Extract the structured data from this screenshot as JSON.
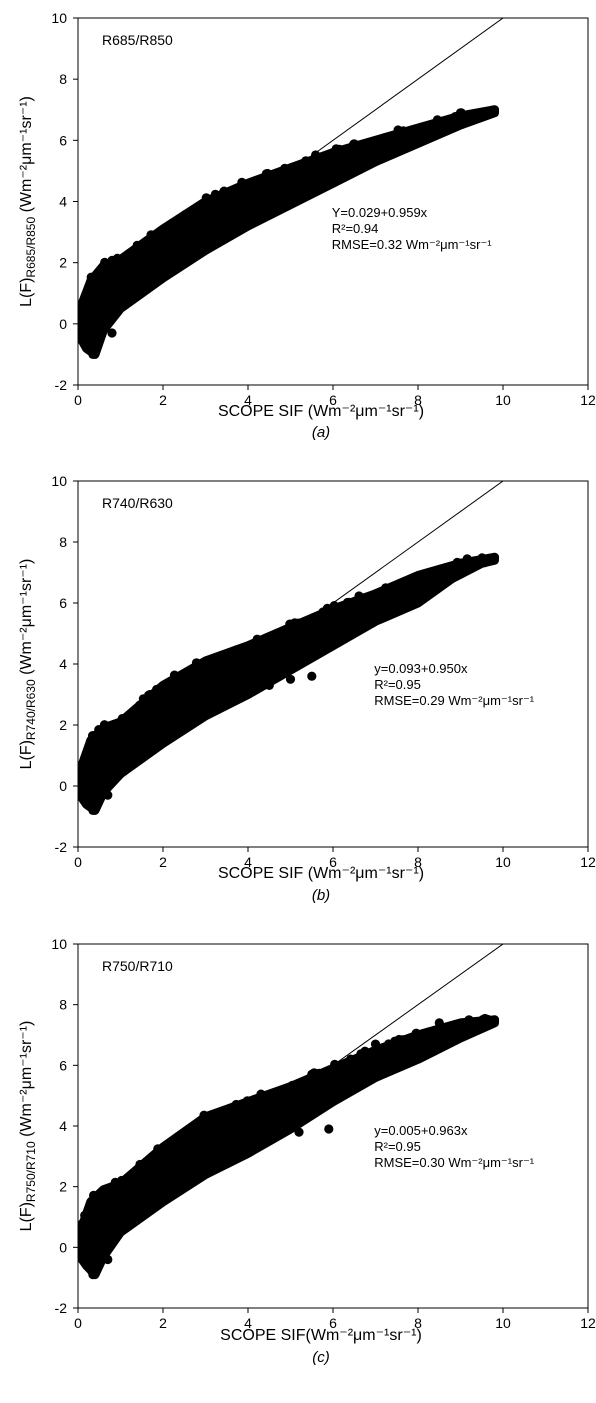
{
  "chart_data": [
    {
      "type": "scatter",
      "panel_caption": "(a)",
      "ratio_label": "R685/R850",
      "xlabel": "SCOPE SIF (Wm⁻²μm⁻¹sr⁻¹)",
      "ylabel_prefix": "L(F)",
      "ylabel_sub": "R685/R850",
      "ylabel_suffix": " (Wm⁻²μm⁻¹sr⁻¹)",
      "xlim": [
        0,
        12
      ],
      "ylim": [
        -2,
        10
      ],
      "xticks": [
        0,
        2,
        4,
        6,
        8,
        10,
        12
      ],
      "yticks": [
        -2,
        0,
        2,
        4,
        6,
        8,
        10
      ],
      "equation": "Y=0.029+0.959x",
      "r2": "R²=0.94",
      "rmse": "RMSE=0.32 Wm⁻²μm⁻¹sr⁻¹",
      "line": {
        "intercept": 0,
        "slope": 1
      },
      "scatter_envelope": {
        "upper": [
          [
            0,
            0.3
          ],
          [
            0.3,
            1.4
          ],
          [
            0.6,
            1.9
          ],
          [
            1,
            2.1
          ],
          [
            2,
            3.1
          ],
          [
            3,
            4.0
          ],
          [
            4,
            4.6
          ],
          [
            5,
            5.1
          ],
          [
            6,
            5.6
          ],
          [
            7,
            6.0
          ],
          [
            8,
            6.4
          ],
          [
            9,
            6.8
          ],
          [
            9.8,
            7.0
          ]
        ],
        "lower": [
          [
            0,
            -0.3
          ],
          [
            0.2,
            -0.8
          ],
          [
            0.4,
            -1.0
          ],
          [
            0.6,
            -0.2
          ],
          [
            1,
            0.5
          ],
          [
            2,
            1.5
          ],
          [
            3,
            2.4
          ],
          [
            4,
            3.2
          ],
          [
            5,
            3.9
          ],
          [
            6,
            4.6
          ],
          [
            7,
            5.3
          ],
          [
            8,
            5.9
          ],
          [
            9,
            6.5
          ],
          [
            9.8,
            6.9
          ]
        ]
      },
      "scatter_points": [
        [
          0.2,
          -0.6
        ],
        [
          0.35,
          -1.0
        ],
        [
          0.5,
          -0.4
        ],
        [
          0.8,
          -0.3
        ],
        [
          1.0,
          2.0
        ],
        [
          0.9,
          1.9
        ],
        [
          6.0,
          5.6
        ],
        [
          8.5,
          6.5
        ],
        [
          9.0,
          6.9
        ],
        [
          9.5,
          6.9
        ],
        [
          9.8,
          7.0
        ]
      ]
    },
    {
      "type": "scatter",
      "panel_caption": "(b)",
      "ratio_label": "R740/R630",
      "xlabel": "SCOPE SIF (Wm⁻²μm⁻¹sr⁻¹)",
      "ylabel_prefix": "L(F)",
      "ylabel_sub": "R740/R630",
      "ylabel_suffix": " (Wm⁻²μm⁻¹sr⁻¹)",
      "xlim": [
        0,
        12
      ],
      "ylim": [
        -2,
        10
      ],
      "xticks": [
        0,
        2,
        4,
        6,
        8,
        10,
        12
      ],
      "yticks": [
        -2,
        0,
        2,
        4,
        6,
        8,
        10
      ],
      "equation": "y=0.093+0.950x",
      "r2": "R²=0.95",
      "rmse": "RMSE=0.29 Wm⁻²μm⁻¹sr⁻¹",
      "line": {
        "intercept": 0,
        "slope": 1
      },
      "scatter_envelope": {
        "upper": [
          [
            0,
            0.3
          ],
          [
            0.3,
            1.5
          ],
          [
            0.6,
            1.9
          ],
          [
            1,
            2.1
          ],
          [
            2,
            3.3
          ],
          [
            3,
            4.1
          ],
          [
            4,
            4.6
          ],
          [
            5,
            5.2
          ],
          [
            6,
            5.8
          ],
          [
            7,
            6.3
          ],
          [
            8,
            6.9
          ],
          [
            9,
            7.3
          ],
          [
            9.8,
            7.5
          ]
        ],
        "lower": [
          [
            0,
            -0.2
          ],
          [
            0.2,
            -0.6
          ],
          [
            0.4,
            -0.8
          ],
          [
            0.6,
            -0.2
          ],
          [
            1,
            0.4
          ],
          [
            2,
            1.4
          ],
          [
            3,
            2.3
          ],
          [
            4,
            3.0
          ],
          [
            5,
            3.8
          ],
          [
            6,
            4.6
          ],
          [
            7,
            5.4
          ],
          [
            8,
            6.0
          ],
          [
            8.8,
            6.8
          ],
          [
            9.5,
            7.3
          ],
          [
            9.8,
            7.4
          ]
        ]
      },
      "scatter_points": [
        [
          0.35,
          -0.8
        ],
        [
          0.7,
          -0.3
        ],
        [
          1.0,
          2.1
        ],
        [
          4.5,
          3.3
        ],
        [
          5.0,
          3.5
        ],
        [
          5.5,
          3.6
        ],
        [
          8.5,
          7.1
        ],
        [
          9.0,
          7.3
        ],
        [
          9.5,
          7.4
        ],
        [
          9.8,
          7.5
        ]
      ]
    },
    {
      "type": "scatter",
      "panel_caption": "(c)",
      "ratio_label": "R750/R710",
      "xlabel": "SCOPE SIF(Wm⁻²μm⁻¹sr⁻¹)",
      "ylabel_prefix": "L(F)",
      "ylabel_sub": "R750/R710",
      "ylabel_suffix": " (Wm⁻²μm⁻¹sr⁻¹)",
      "xlim": [
        0,
        12
      ],
      "ylim": [
        -2,
        10
      ],
      "xticks": [
        0,
        2,
        4,
        6,
        8,
        10,
        12
      ],
      "yticks": [
        -2,
        0,
        2,
        4,
        6,
        8,
        10
      ],
      "equation": "y=0.005+0.963x",
      "r2": "R²=0.95",
      "rmse": "RMSE=0.30 Wm⁻²μm⁻¹sr⁻¹",
      "line": {
        "intercept": 0,
        "slope": 1
      },
      "scatter_envelope": {
        "upper": [
          [
            0,
            0.3
          ],
          [
            0.3,
            1.5
          ],
          [
            0.6,
            1.9
          ],
          [
            1,
            2.1
          ],
          [
            2,
            3.3
          ],
          [
            3,
            4.3
          ],
          [
            4,
            4.8
          ],
          [
            5,
            5.3
          ],
          [
            6,
            5.9
          ],
          [
            7,
            6.5
          ],
          [
            8,
            7.0
          ],
          [
            9,
            7.4
          ],
          [
            9.8,
            7.5
          ]
        ],
        "lower": [
          [
            0,
            -0.2
          ],
          [
            0.2,
            -0.6
          ],
          [
            0.4,
            -0.9
          ],
          [
            0.6,
            -0.3
          ],
          [
            1,
            0.5
          ],
          [
            2,
            1.5
          ],
          [
            3,
            2.4
          ],
          [
            4,
            3.1
          ],
          [
            5,
            3.9
          ],
          [
            6,
            4.8
          ],
          [
            7,
            5.6
          ],
          [
            8,
            6.2
          ],
          [
            9,
            6.9
          ],
          [
            9.8,
            7.4
          ]
        ]
      },
      "scatter_points": [
        [
          0.35,
          -0.9
        ],
        [
          0.7,
          -0.4
        ],
        [
          1.0,
          2.1
        ],
        [
          4.6,
          3.6
        ],
        [
          5.2,
          3.8
        ],
        [
          5.9,
          3.9
        ],
        [
          7.0,
          6.7
        ],
        [
          8.5,
          7.4
        ],
        [
          9.2,
          7.5
        ],
        [
          9.8,
          7.5
        ]
      ]
    }
  ]
}
